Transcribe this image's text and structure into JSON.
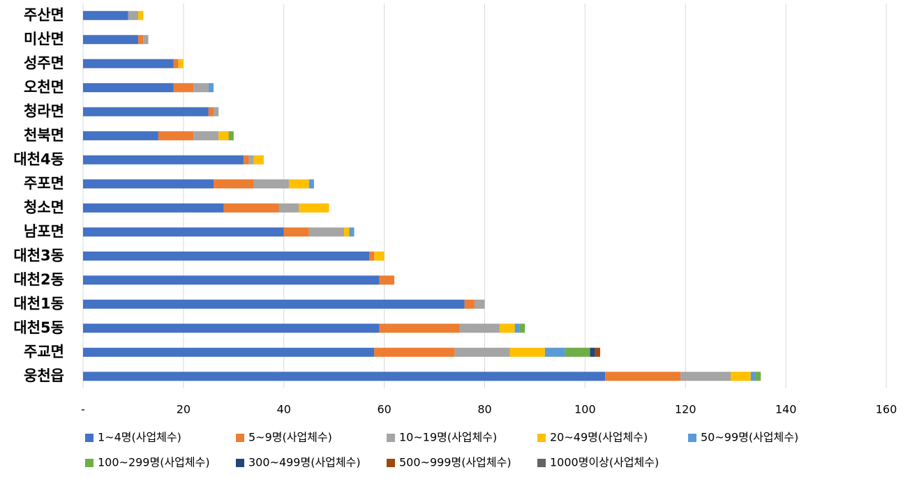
{
  "chart_data": {
    "type": "stacked_barh",
    "categories": [
      "주산면",
      "미산면",
      "성주면",
      "오천면",
      "청라면",
      "천북면",
      "대천4동",
      "주포면",
      "청소면",
      "남포면",
      "대천3동",
      "대천2동",
      "대천1동",
      "대천5동",
      "주교면",
      "웅천읍"
    ],
    "series": [
      {
        "name": "1~4명(사업체수)",
        "color": "#4472c4",
        "values": [
          9,
          11,
          18,
          18,
          25,
          15,
          32,
          26,
          28,
          40,
          57,
          59,
          76,
          59,
          58,
          104
        ]
      },
      {
        "name": "5~9명(사업체수)",
        "color": "#ed7d31",
        "values": [
          0,
          1,
          1,
          4,
          1,
          7,
          1,
          8,
          11,
          5,
          1,
          3,
          2,
          16,
          16,
          15
        ]
      },
      {
        "name": "10~19명(사업체수)",
        "color": "#a5a5a5",
        "values": [
          2,
          1,
          0,
          3,
          1,
          5,
          1,
          7,
          4,
          7,
          0,
          0,
          2,
          8,
          11,
          10
        ]
      },
      {
        "name": "20~49명(사업체수)",
        "color": "#ffc000",
        "values": [
          1,
          0,
          1,
          0,
          0,
          2,
          2,
          4,
          6,
          1,
          2,
          0,
          0,
          3,
          7,
          4
        ]
      },
      {
        "name": "50~99명(사업체수)",
        "color": "#5b9bd5",
        "values": [
          0,
          0,
          0,
          1,
          0,
          0,
          0,
          1,
          0,
          1,
          0,
          0,
          0,
          1,
          4,
          1
        ]
      },
      {
        "name": "100~299명(사업체수)",
        "color": "#70ad47",
        "values": [
          0,
          0,
          0,
          0,
          0,
          1,
          0,
          0,
          0,
          0,
          0,
          0,
          0,
          1,
          5,
          1
        ]
      },
      {
        "name": "300~499명(사업체수)",
        "color": "#264478",
        "values": [
          0,
          0,
          0,
          0,
          0,
          0,
          0,
          0,
          0,
          0,
          0,
          0,
          0,
          0,
          1,
          0
        ]
      },
      {
        "name": "500~999명(사업체수)",
        "color": "#9e480e",
        "values": [
          0,
          0,
          0,
          0,
          0,
          0,
          0,
          0,
          0,
          0,
          0,
          0,
          0,
          0,
          1,
          0
        ]
      },
      {
        "name": "1000명이상(사업체수)",
        "color": "#636363",
        "values": [
          0,
          0,
          0,
          0,
          0,
          0,
          0,
          0,
          0,
          0,
          0,
          0,
          0,
          0,
          0,
          0
        ]
      }
    ],
    "xlim": [
      0,
      160
    ],
    "xticks": [
      {
        "value": 0,
        "label": "-"
      },
      20,
      40,
      60,
      80,
      100,
      120,
      140,
      160
    ],
    "grid": true,
    "legend": "bottom"
  }
}
